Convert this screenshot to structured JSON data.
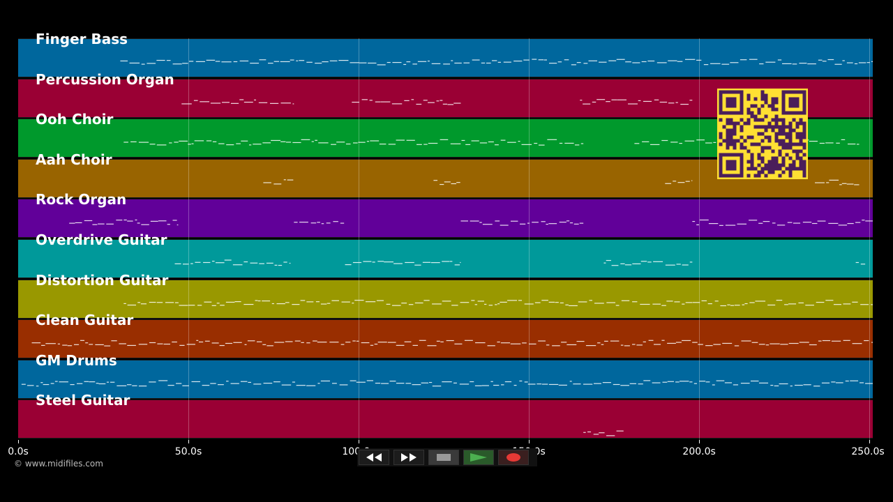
{
  "tracks": [
    {
      "name": "Finger Bass",
      "color": "#00679d"
    },
    {
      "name": "Percussion Organ",
      "color": "#9a0034"
    },
    {
      "name": "Ooh Choir",
      "color": "#00992c"
    },
    {
      "name": "Aah Choir",
      "color": "#996400"
    },
    {
      "name": "Rock Organ",
      "color": "#610099"
    },
    {
      "name": "Overdrive Guitar",
      "color": "#00999a"
    },
    {
      "name": "Distortion Guitar",
      "color": "#999800"
    },
    {
      "name": "Clean Guitar",
      "color": "#992e00"
    },
    {
      "name": "GM Drums",
      "color": "#00679d"
    },
    {
      "name": "Steel Guitar",
      "color": "#9a0034"
    }
  ],
  "axis": {
    "ticks": [
      "0.0s",
      "50.0s",
      "100.0s",
      "150.0s",
      "200.0s",
      "250.0s"
    ],
    "tick_values": [
      0,
      50,
      100,
      150,
      200,
      250
    ],
    "range": [
      0,
      251
    ]
  },
  "copyright": "© www.midifiles.com",
  "transport": {
    "rewind": "rewind-icon",
    "fast_forward": "fast-forward-icon",
    "stop": "stop-icon",
    "play": "play-icon",
    "record": "record-icon",
    "accent_play": "#4caf50",
    "accent_record": "#e53935"
  },
  "qr_color": "#ffe033"
}
